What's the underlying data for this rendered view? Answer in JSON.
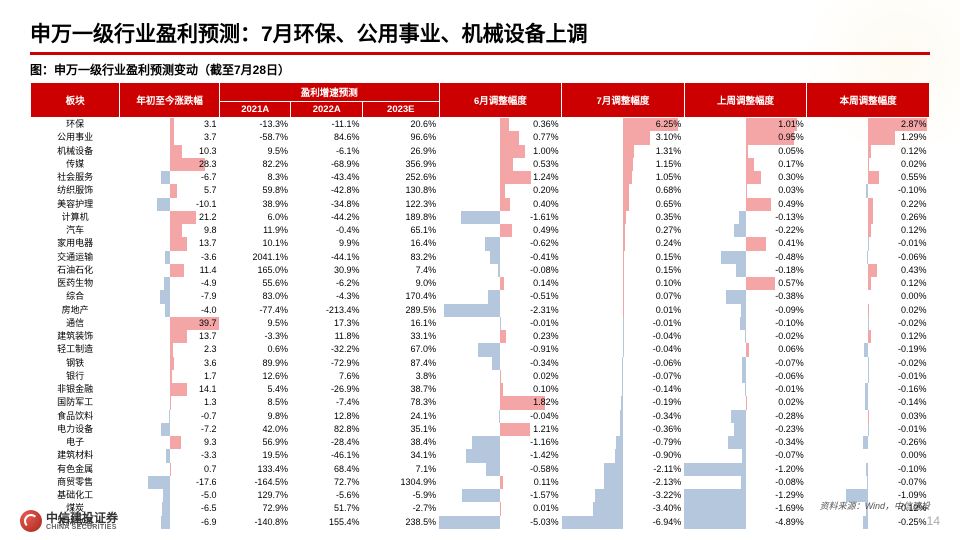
{
  "title": "申万一级行业盈利预测：7月环保、公用事业、机械设备上调",
  "subtitle": "图：申万一级行业盈利预测变动（截至7月28日）",
  "source": "资料来源：Wind，中信建投",
  "logo": {
    "cn": "中信建投证券",
    "en": "CHINA SECURITIES"
  },
  "page": "14",
  "colors": {
    "header_bg": "#c00000",
    "header_fg": "#ffffff",
    "pos_bar": "#f4a6a6",
    "neg_bar": "#b4c7dc",
    "font_size_table": 9
  },
  "columns": {
    "group_top": [
      "板块",
      "年初至今涨跌幅",
      "盈利增速预测",
      "",
      "",
      "",
      "",
      ""
    ],
    "group_span": [
      1,
      1,
      3,
      1,
      1,
      1,
      1
    ],
    "labels": [
      "板块",
      "年初至今涨跌幅",
      "2021A",
      "2022A",
      "2023E",
      "6月调整幅度",
      "7月调整幅度",
      "上周调整幅度",
      "本周调整幅度"
    ],
    "widths": [
      70,
      78,
      56,
      56,
      60,
      96,
      96,
      96,
      96
    ],
    "barcols": [
      1,
      5,
      6,
      7,
      8
    ]
  },
  "scales": {
    "ytd": 40,
    "adj6": 2.5,
    "adj7": 7,
    "adjw": 1.2,
    "adjtw": 3
  },
  "rows": [
    [
      "环保",
      3.1,
      "-13.3%",
      "-11.1%",
      "20.6%",
      0.36,
      6.25,
      1.01,
      2.87
    ],
    [
      "公用事业",
      3.7,
      "-58.7%",
      "84.6%",
      "96.6%",
      0.77,
      3.1,
      0.95,
      1.29
    ],
    [
      "机械设备",
      10.3,
      "9.5%",
      "-6.1%",
      "26.9%",
      1.0,
      1.31,
      0.05,
      0.12
    ],
    [
      "传媒",
      28.3,
      "82.2%",
      "-68.9%",
      "356.9%",
      0.53,
      1.15,
      0.17,
      0.02
    ],
    [
      "社会服务",
      -6.7,
      "8.3%",
      "-43.4%",
      "252.6%",
      1.24,
      1.05,
      0.3,
      0.55
    ],
    [
      "纺织服饰",
      5.7,
      "59.8%",
      "-42.8%",
      "130.8%",
      0.2,
      0.68,
      0.03,
      -0.1
    ],
    [
      "美容护理",
      -10.1,
      "38.9%",
      "-34.8%",
      "122.3%",
      0.4,
      0.65,
      0.49,
      0.22
    ],
    [
      "计算机",
      21.2,
      "6.0%",
      "-44.2%",
      "189.8%",
      -1.61,
      0.35,
      -0.13,
      0.26
    ],
    [
      "汽车",
      9.8,
      "11.9%",
      "-0.4%",
      "65.1%",
      0.49,
      0.27,
      -0.22,
      0.12
    ],
    [
      "家用电器",
      13.7,
      "10.1%",
      "9.9%",
      "16.4%",
      -0.62,
      0.24,
      0.41,
      -0.01
    ],
    [
      "交通运输",
      -3.6,
      "2041.1%",
      "-44.1%",
      "83.2%",
      -0.41,
      0.15,
      -0.48,
      -0.06
    ],
    [
      "石油石化",
      11.4,
      "165.0%",
      "30.9%",
      "7.4%",
      -0.08,
      0.15,
      -0.18,
      0.43
    ],
    [
      "医药生物",
      -4.9,
      "55.6%",
      "-6.2%",
      "9.0%",
      0.14,
      0.1,
      0.57,
      0.12
    ],
    [
      "综合",
      -7.9,
      "83.0%",
      "-4.3%",
      "170.4%",
      -0.51,
      0.07,
      -0.38,
      0.0
    ],
    [
      "房地产",
      -4.0,
      "-77.4%",
      "-213.4%",
      "289.5%",
      -2.31,
      0.01,
      -0.09,
      0.02
    ],
    [
      "通信",
      39.7,
      "9.5%",
      "17.3%",
      "16.1%",
      -0.01,
      -0.01,
      -0.1,
      -0.02
    ],
    [
      "建筑装饰",
      13.7,
      "-3.3%",
      "11.8%",
      "33.1%",
      0.23,
      -0.04,
      -0.02,
      0.12
    ],
    [
      "轻工制造",
      2.3,
      "0.6%",
      "-32.2%",
      "67.0%",
      -0.91,
      -0.04,
      0.06,
      -0.19
    ],
    [
      "钢铁",
      3.6,
      "89.9%",
      "-72.9%",
      "87.4%",
      -0.34,
      -0.06,
      -0.07,
      -0.02
    ],
    [
      "银行",
      1.7,
      "12.6%",
      "7.6%",
      "3.8%",
      0.02,
      -0.07,
      -0.06,
      -0.01
    ],
    [
      "非银金融",
      14.1,
      "5.4%",
      "-26.9%",
      "38.7%",
      0.1,
      -0.14,
      -0.01,
      -0.16
    ],
    [
      "国防军工",
      1.3,
      "8.5%",
      "-7.4%",
      "78.3%",
      1.82,
      -0.19,
      0.02,
      -0.14
    ],
    [
      "食品饮料",
      -0.7,
      "9.8%",
      "12.8%",
      "24.1%",
      -0.04,
      -0.34,
      -0.28,
      0.03
    ],
    [
      "电力设备",
      -7.2,
      "42.0%",
      "82.8%",
      "35.1%",
      1.21,
      -0.36,
      -0.23,
      -0.01
    ],
    [
      "电子",
      9.3,
      "56.9%",
      "-28.4%",
      "38.4%",
      -1.16,
      -0.79,
      -0.34,
      -0.26
    ],
    [
      "建筑材料",
      -3.3,
      "19.5%",
      "-46.1%",
      "34.1%",
      -1.42,
      -0.9,
      -0.07,
      0.0
    ],
    [
      "有色金属",
      0.7,
      "133.4%",
      "68.4%",
      "7.1%",
      -0.58,
      -2.11,
      -1.2,
      -0.1
    ],
    [
      "商贸零售",
      -17.6,
      "-164.5%",
      "72.7%",
      "1304.9%",
      0.11,
      -2.13,
      -0.08,
      -0.07
    ],
    [
      "基础化工",
      -5.0,
      "129.7%",
      "-5.6%",
      "-5.9%",
      -1.57,
      -3.22,
      -1.29,
      -1.09
    ],
    [
      "煤炭",
      -6.5,
      "72.9%",
      "51.7%",
      "-2.7%",
      0.01,
      -3.4,
      -1.69,
      -0.12
    ],
    [
      "农林牧渔",
      -6.9,
      "-140.8%",
      "155.4%",
      "238.5%",
      -5.03,
      -6.94,
      -4.89,
      -0.25
    ]
  ]
}
